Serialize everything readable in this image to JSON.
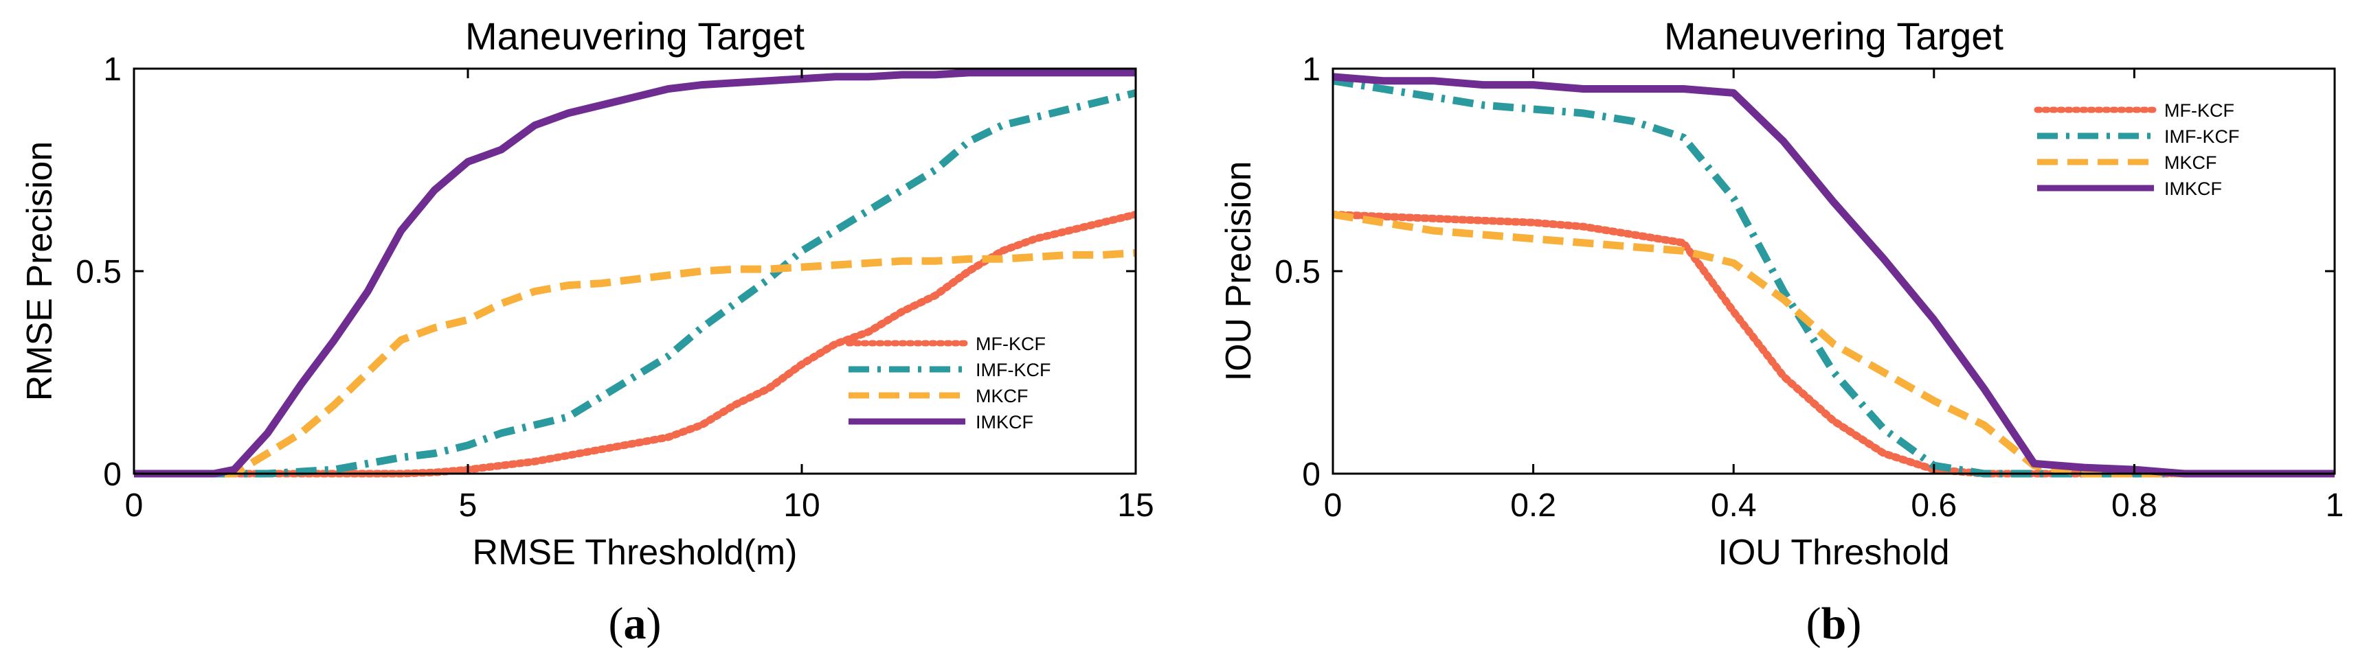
{
  "chart_data": [
    {
      "type": "line",
      "panel_label": "(a)",
      "panel_letter": "a",
      "title": "Maneuvering Target",
      "xlabel": "RMSE Threshold(m)",
      "ylabel": "RMSE Precision",
      "xlim": [
        0,
        15
      ],
      "ylim": [
        0,
        1
      ],
      "xticks": [
        0,
        5,
        10,
        15
      ],
      "xtick_labels": [
        "0",
        "5",
        "10",
        "15"
      ],
      "yticks": [
        0,
        0.5,
        1
      ],
      "ytick_labels": [
        "0",
        "0.5",
        "1"
      ],
      "legend_position": "bottom-right",
      "series": [
        {
          "name": "MF-KCF",
          "color": "#f26a4b",
          "dash": "dotted",
          "x": [
            0,
            1.5,
            2,
            3,
            4,
            4.5,
            5,
            5.5,
            6,
            6.5,
            7,
            7.5,
            8,
            8.5,
            9,
            9.5,
            10,
            10.5,
            11,
            11.5,
            12,
            12.5,
            13,
            13.5,
            14,
            14.5,
            15
          ],
          "y": [
            0,
            0,
            0,
            0,
            0,
            0.003,
            0.01,
            0.02,
            0.03,
            0.045,
            0.06,
            0.075,
            0.09,
            0.12,
            0.17,
            0.21,
            0.27,
            0.32,
            0.35,
            0.4,
            0.44,
            0.5,
            0.55,
            0.58,
            0.6,
            0.62,
            0.64
          ]
        },
        {
          "name": "IMF-KCF",
          "color": "#2a9a9e",
          "dash": "dashdot",
          "x": [
            0,
            1.5,
            2,
            2.5,
            3,
            3.5,
            4,
            4.5,
            5,
            5.5,
            6,
            6.5,
            7,
            7.5,
            8,
            8.5,
            9,
            9.5,
            10,
            10.5,
            11,
            11.5,
            12,
            12.5,
            13,
            13.5,
            14,
            14.5,
            15
          ],
          "y": [
            0,
            0,
            0,
            0.005,
            0.01,
            0.025,
            0.04,
            0.05,
            0.07,
            0.1,
            0.12,
            0.14,
            0.19,
            0.24,
            0.29,
            0.36,
            0.42,
            0.48,
            0.55,
            0.6,
            0.65,
            0.7,
            0.75,
            0.82,
            0.86,
            0.88,
            0.9,
            0.92,
            0.94
          ]
        },
        {
          "name": "MKCF",
          "color": "#f8b03b",
          "dash": "dashed",
          "x": [
            0,
            1.5,
            2,
            2.5,
            3,
            3.5,
            4,
            4.5,
            5,
            5.5,
            6,
            6.5,
            7,
            7.5,
            8,
            8.5,
            9,
            9.5,
            10,
            10.5,
            11,
            11.5,
            12,
            12.5,
            13,
            13.5,
            14,
            14.5,
            15
          ],
          "y": [
            0,
            0,
            0.05,
            0.1,
            0.17,
            0.25,
            0.33,
            0.36,
            0.38,
            0.42,
            0.45,
            0.465,
            0.47,
            0.48,
            0.49,
            0.5,
            0.505,
            0.505,
            0.51,
            0.515,
            0.52,
            0.525,
            0.525,
            0.53,
            0.53,
            0.535,
            0.54,
            0.54,
            0.545
          ]
        },
        {
          "name": "IMKCF",
          "color": "#6f2d91",
          "dash": "solid",
          "x": [
            0,
            1.2,
            1.5,
            2,
            2.5,
            3,
            3.5,
            4,
            4.5,
            5,
            5.5,
            6,
            6.5,
            7,
            7.5,
            8,
            8.5,
            9,
            9.5,
            10,
            10.5,
            11,
            11.5,
            12,
            12.5,
            13,
            13.5,
            14,
            14.5,
            15
          ],
          "y": [
            0,
            0,
            0.01,
            0.1,
            0.22,
            0.33,
            0.45,
            0.6,
            0.7,
            0.77,
            0.8,
            0.86,
            0.89,
            0.91,
            0.93,
            0.95,
            0.96,
            0.965,
            0.97,
            0.975,
            0.98,
            0.98,
            0.985,
            0.985,
            0.99,
            0.99,
            0.99,
            0.99,
            0.99,
            0.99
          ]
        }
      ]
    },
    {
      "type": "line",
      "panel_label": "(b)",
      "panel_letter": "b",
      "title": "Maneuvering Target",
      "xlabel": "IOU Threshold",
      "ylabel": "IOU Precision",
      "xlim": [
        0,
        1
      ],
      "ylim": [
        0,
        1
      ],
      "xticks": [
        0,
        0.2,
        0.4,
        0.6,
        0.8,
        1
      ],
      "xtick_labels": [
        "0",
        "0.2",
        "0.4",
        "0.6",
        "0.8",
        "1"
      ],
      "yticks": [
        0,
        0.5,
        1
      ],
      "ytick_labels": [
        "0",
        "0.5",
        "1"
      ],
      "legend_position": "top-right",
      "series": [
        {
          "name": "MF-KCF",
          "color": "#f26a4b",
          "dash": "dotted",
          "x": [
            0,
            0.05,
            0.1,
            0.15,
            0.2,
            0.25,
            0.3,
            0.35,
            0.4,
            0.45,
            0.5,
            0.55,
            0.6,
            0.65,
            0.7,
            1
          ],
          "y": [
            0.64,
            0.635,
            0.63,
            0.625,
            0.62,
            0.61,
            0.59,
            0.57,
            0.4,
            0.24,
            0.13,
            0.05,
            0.01,
            0,
            0,
            0
          ]
        },
        {
          "name": "IMF-KCF",
          "color": "#2a9a9e",
          "dash": "dashdot",
          "x": [
            0,
            0.05,
            0.1,
            0.15,
            0.2,
            0.25,
            0.3,
            0.35,
            0.4,
            0.45,
            0.5,
            0.55,
            0.6,
            0.65,
            0.7,
            1
          ],
          "y": [
            0.97,
            0.95,
            0.93,
            0.91,
            0.9,
            0.89,
            0.87,
            0.83,
            0.68,
            0.45,
            0.25,
            0.11,
            0.02,
            0,
            0,
            0
          ]
        },
        {
          "name": "MKCF",
          "color": "#f8b03b",
          "dash": "dashed",
          "x": [
            0,
            0.05,
            0.1,
            0.15,
            0.2,
            0.25,
            0.3,
            0.35,
            0.4,
            0.45,
            0.5,
            0.55,
            0.6,
            0.65,
            0.7,
            0.75,
            0.8,
            1
          ],
          "y": [
            0.64,
            0.62,
            0.6,
            0.59,
            0.58,
            0.57,
            0.56,
            0.55,
            0.52,
            0.43,
            0.32,
            0.25,
            0.18,
            0.12,
            0.02,
            0,
            0,
            0
          ]
        },
        {
          "name": "IMKCF",
          "color": "#6f2d91",
          "dash": "solid",
          "x": [
            0,
            0.05,
            0.1,
            0.15,
            0.2,
            0.25,
            0.3,
            0.35,
            0.4,
            0.45,
            0.5,
            0.55,
            0.6,
            0.65,
            0.7,
            0.75,
            0.8,
            0.85,
            1
          ],
          "y": [
            0.98,
            0.97,
            0.97,
            0.96,
            0.96,
            0.95,
            0.95,
            0.95,
            0.94,
            0.82,
            0.67,
            0.53,
            0.38,
            0.21,
            0.025,
            0.015,
            0.01,
            0,
            0
          ]
        }
      ]
    }
  ]
}
